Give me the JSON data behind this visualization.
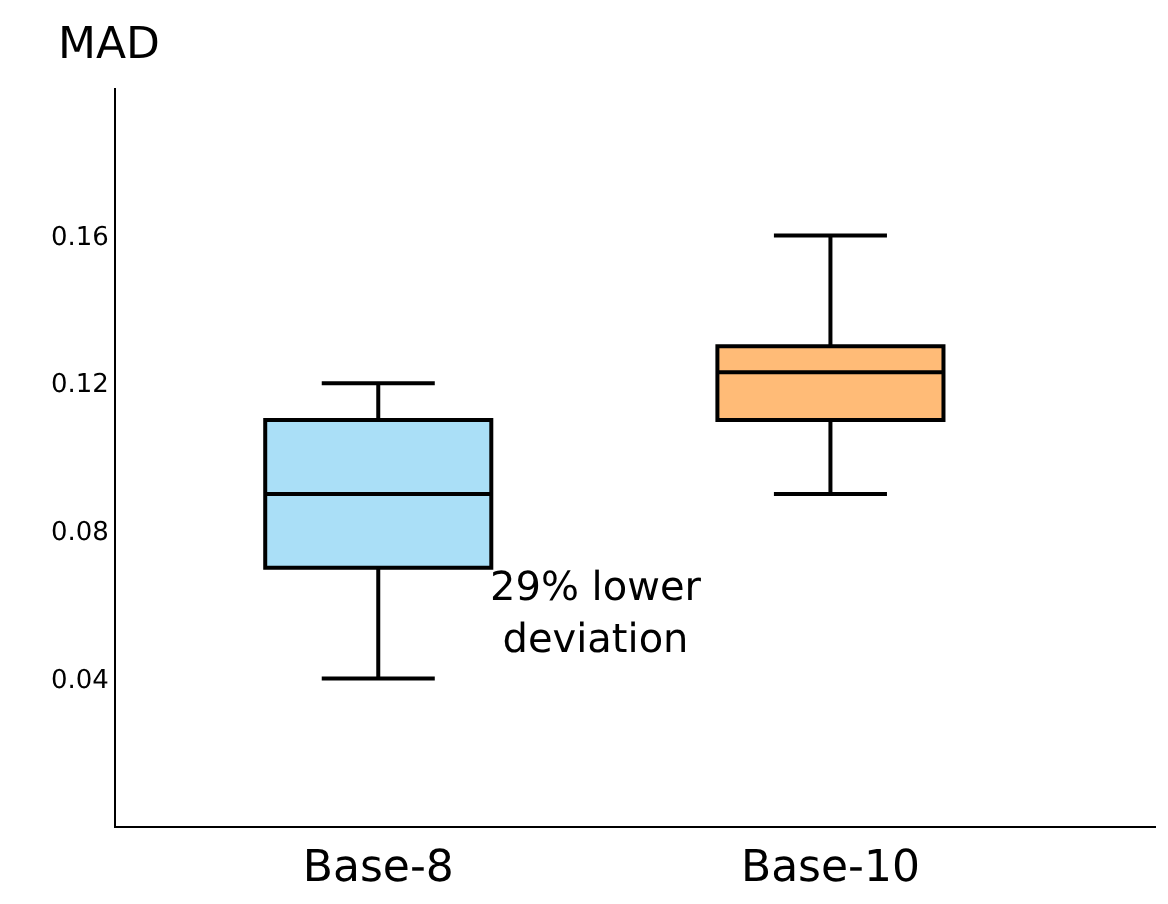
{
  "chart_data": {
    "type": "box",
    "ylabel": "MAD",
    "categories": [
      "Base-8",
      "Base-10"
    ],
    "boxes": [
      {
        "low": 0.04,
        "q1": 0.07,
        "median": 0.09,
        "q3": 0.11,
        "high": 0.12
      },
      {
        "low": 0.09,
        "q1": 0.11,
        "median": 0.123,
        "q3": 0.13,
        "high": 0.16
      }
    ],
    "colors": [
      "#aadff7",
      "#ffbb77"
    ],
    "ylim": [
      0,
      0.2
    ],
    "yticks": [
      0.04,
      0.08,
      0.12,
      0.16
    ],
    "annotations": [
      "29% lower\ndeviation"
    ],
    "legend": false
  }
}
